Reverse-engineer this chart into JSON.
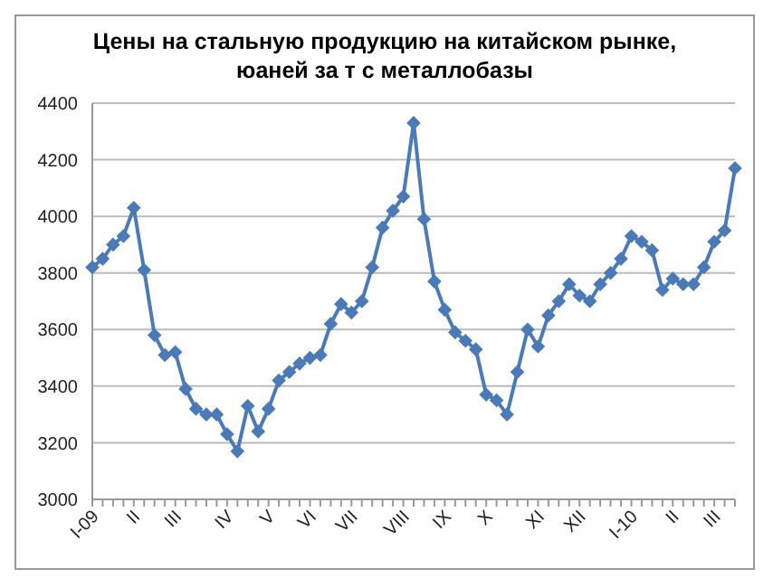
{
  "chart_data": {
    "type": "line",
    "title": "Цены на стальную продукцию на китайском рынке, юаней за т с металлобазы",
    "categories": [
      "I-09",
      null,
      null,
      null,
      "II",
      null,
      null,
      null,
      "III",
      null,
      null,
      null,
      null,
      "IV",
      null,
      null,
      null,
      "V",
      null,
      null,
      null,
      "VI",
      null,
      null,
      null,
      "VII",
      null,
      null,
      null,
      null,
      "VIII",
      null,
      null,
      null,
      "IX",
      null,
      null,
      null,
      "X",
      null,
      null,
      null,
      null,
      "XI",
      null,
      null,
      null,
      "XII",
      null,
      null,
      null,
      null,
      "I-10",
      null,
      null,
      null,
      "II",
      null,
      null,
      null,
      "III",
      null,
      null
    ],
    "series": [
      {
        "color": "#4a7ab8",
        "values": [
          3820,
          3850,
          3900,
          3930,
          4030,
          3810,
          3580,
          3510,
          3520,
          3390,
          3320,
          3300,
          3300,
          3230,
          3170,
          3330,
          3240,
          3320,
          3420,
          3450,
          3480,
          3500,
          3510,
          3620,
          3690,
          3660,
          3700,
          3820,
          3960,
          4020,
          4070,
          4330,
          3990,
          3770,
          3670,
          3590,
          3560,
          3530,
          3370,
          3350,
          3300,
          3450,
          3600,
          3540,
          3650,
          3700,
          3760,
          3720,
          3700,
          3760,
          3800,
          3850,
          3930,
          3910,
          3880,
          3740,
          3780,
          3760,
          3760,
          3820,
          3910,
          3950,
          4170
        ]
      }
    ],
    "ylim": [
      3000,
      4400
    ],
    "yticks": [
      3000,
      3200,
      3400,
      3600,
      3800,
      4000,
      4200,
      4400
    ],
    "grid": "y",
    "legend": false,
    "marker": "diamond",
    "line_style": "solid"
  }
}
